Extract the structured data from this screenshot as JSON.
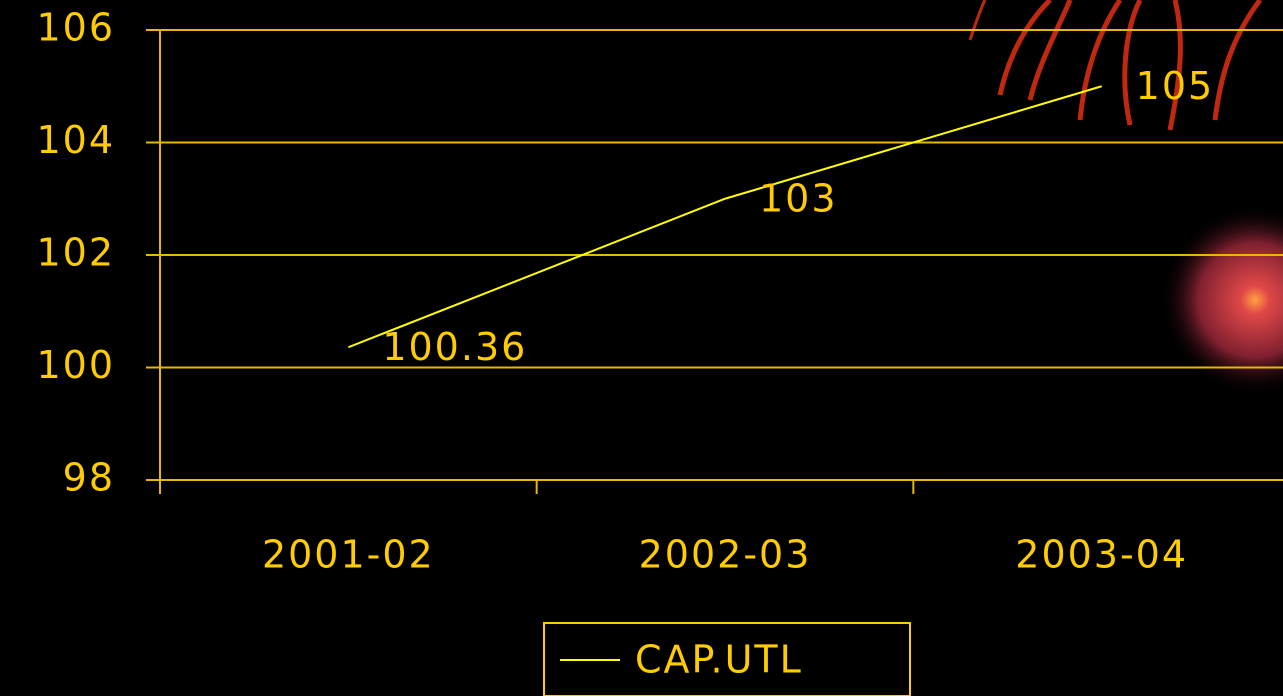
{
  "chart_data": {
    "type": "line",
    "categories": [
      "2001-02",
      "2002-03",
      "2003-04"
    ],
    "series": [
      {
        "name": "CAP.UTL",
        "color": "#ffff00",
        "values": [
          100.36,
          103,
          105
        ]
      }
    ],
    "ylim": [
      98,
      106
    ],
    "yticks": [
      98,
      100,
      102,
      104,
      106
    ],
    "grid": true,
    "legend": "bottom"
  }
}
